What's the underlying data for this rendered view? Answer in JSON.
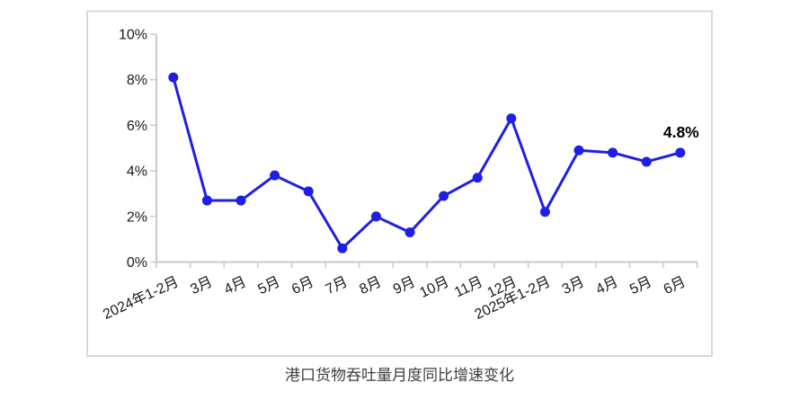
{
  "page": {
    "background": "#ffffff",
    "caption": "港口货物吞吐量月度同比增速变化"
  },
  "chart_data": {
    "type": "line",
    "title": "港口货物吞吐量月度同比增速变化",
    "categories": [
      "2024年1-2月",
      "3月",
      "4月",
      "5月",
      "6月",
      "7月",
      "8月",
      "9月",
      "10月",
      "11月",
      "12月",
      "2025年1-2月",
      "3月",
      "4月",
      "5月",
      "6月"
    ],
    "values": [
      8.1,
      2.7,
      2.7,
      3.8,
      3.1,
      0.6,
      2.0,
      1.3,
      2.9,
      3.7,
      6.3,
      2.2,
      4.9,
      4.8,
      4.4,
      4.8
    ],
    "xlabel": "",
    "ylabel": "",
    "ylim": [
      0,
      10
    ],
    "ytick_step": 2,
    "ytick_labels": [
      "0%",
      "2%",
      "4%",
      "6%",
      "8%",
      "10%"
    ],
    "x_label_rotation_deg": -25,
    "grid": false,
    "legend": "none",
    "point_label": {
      "text": "4.8%",
      "point_index": 15
    },
    "colors": {
      "line": "#1e1ee6",
      "marker": "#1e1ee6",
      "axis": "#c9c9c9",
      "tick_text": "#1a1a1a",
      "annotation": "#000000",
      "caption_text": "#404040",
      "frame_border": "#d9d9d9",
      "background": "#ffffff"
    }
  }
}
